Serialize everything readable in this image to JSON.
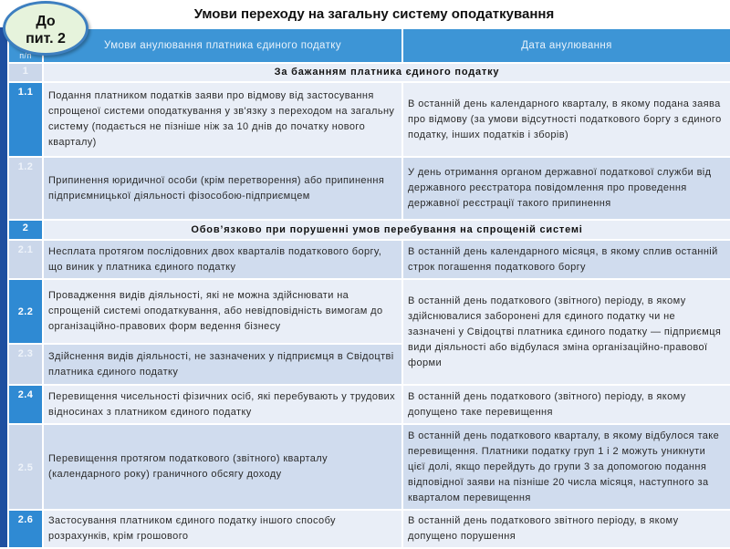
{
  "title": "Умови  переходу  на загальну систему оподаткування",
  "bubble": {
    "line1": "До",
    "line2": "пит. 2"
  },
  "header": {
    "num": "п/п",
    "conditions": "Умови анулювання платника єдиного податку",
    "date": "Дата анулювання"
  },
  "sections": [
    {
      "num": "1",
      "label": "За бажанням платника єдиного податку"
    },
    {
      "num": "2",
      "label": "Обов’язково при порушенні умов перебування на спрощеній системі"
    }
  ],
  "rows": [
    {
      "num": "1.1",
      "condition": "Подання платником податків заяви про відмову від застосування спрощеної системи оподаткування у зв'язку з переходом на загальну систему (подається не пізніше ніж за 10 днів до початку нового кварталу)",
      "date": "В останній день календарного кварталу, в якому подана заява про відмову (за умови відсутності податкового боргу з єдиного податку, інших податків і зборів)"
    },
    {
      "num": "1.2",
      "condition": "Припинення юридичної особи (крім перетворення) або припинення підприємницької діяльності фізособою-підприємцем",
      "date": "У день отримання органом державної податкової служби від державного реєстратора повідомлення про проведення державної реєстрації такого припинення"
    },
    {
      "num": "2.1",
      "condition": "Несплата протягом послідовних двох кварталів податкового боргу, що виник у платника єдиного податку",
      "date": "В останній день календарного місяця, в якому сплив останній строк погашення податкового боргу"
    },
    {
      "num": "2.2",
      "condition": "Провадження видів діяльності, які не можна здійснювати на спрощеній системі оподаткування, або невідповідність вимогам до організаційно-правових форм ведення бізнесу",
      "date": "В останній день податкового (звітного) періоду, в якому здійснювалися заборонені для єдиного податку чи не зазначені у Свідоцтві платника єдиного податку — підприємця види діяльності або відбулася зміна організаційно-правової форми"
    },
    {
      "num": "2.3",
      "condition": "Здійснення видів діяльності, не зазначених у підприємця  в Свідоцтві платника єдиного податку"
    },
    {
      "num": "2.4",
      "condition": "Перевищення чисельності фізичних осіб, які перебувають у трудових відносинах з платником єдиного податку",
      "date": "В останній день податкового (звітного) періоду, в якому допущено таке перевищення"
    },
    {
      "num": "2.5",
      "condition": "Перевищення протягом податкового (звітного) кварталу (календарного року) граничного обсягу доходу",
      "date": "В останній день податкового кварталу, в якому відбулося таке перевищення. Платники податку груп 1 і 2 можуть уникнути цієї долі, якщо перейдуть до групи  3 за допомогою подання відповідної заяви на пізніше 20 числа місяця, наступного за кварталом перевищення"
    },
    {
      "num": "2.6",
      "condition": "Застосування платником єдиного податку іншого способу розрахунків, крім грошового",
      "date": "В останній день податкового звітного періоду, в якому допущено порушення"
    }
  ]
}
